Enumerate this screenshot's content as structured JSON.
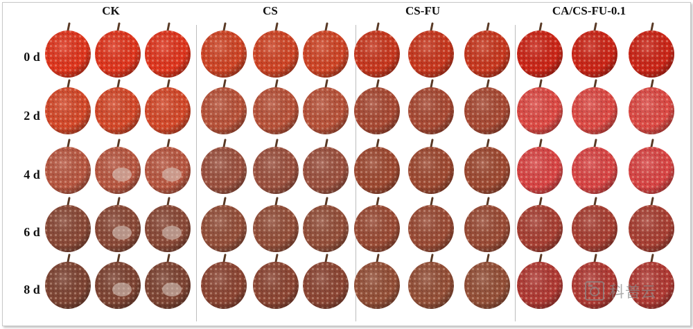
{
  "columns": [
    {
      "label": "CK"
    },
    {
      "label": "CS"
    },
    {
      "label": "CS-FU"
    },
    {
      "label": "CA/CS-FU-0.1"
    }
  ],
  "days": [
    {
      "label": "0 d"
    },
    {
      "label": "2 d"
    },
    {
      "label": "4 d"
    },
    {
      "label": "6 d"
    },
    {
      "label": "8 d"
    }
  ],
  "watermark": {
    "text": "科普云",
    "icon": "camera-seal-icon"
  },
  "colors": {
    "fresh_red": "#d8321f",
    "browning": "#9e4a32",
    "browned": "#7a3e2c",
    "pale_spot": "#e8d8cf"
  }
}
